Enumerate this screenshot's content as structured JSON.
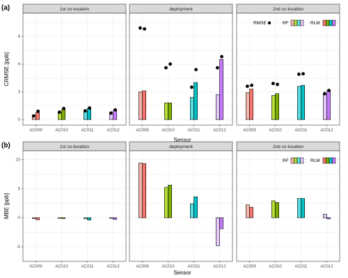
{
  "colors": {
    "AC009": "#f8766d",
    "AC010": "#7cae00",
    "AC011": "#00bfc4",
    "AC012": "#c77cff",
    "RF_AC009": "#f4b6af",
    "RF_AC010": "#b6df3a",
    "RF_AC011": "#58dde0",
    "RF_AC012": "#e4c9fb",
    "strip": "#d9d9d9",
    "grid": "#ebebeb",
    "point": "#000000"
  },
  "chart_data": [
    {
      "id": "a",
      "panel_label": "(a)",
      "type": "bar",
      "ylabel": "CRMSE [ppb]",
      "xlabel": "Sensor",
      "ylim": [
        -0.6,
        11.5
      ],
      "yticks": [
        0,
        3,
        6,
        9
      ],
      "categories": [
        "AC009",
        "AC010",
        "AC011",
        "AC012"
      ],
      "legend": {
        "rmse_label": "RMSE",
        "rf_label": "RF",
        "rlm_label": "RLM"
      },
      "facets": [
        {
          "title": "1st co-location",
          "series": [
            {
              "name": "RF",
              "values": [
                0.4,
                0.7,
                0.9,
                0.6
              ]
            },
            {
              "name": "RLM",
              "values": [
                0.8,
                1.1,
                1.2,
                1.0
              ]
            }
          ],
          "rmse": {
            "RF": [
              0.4,
              0.8,
              0.95,
              0.7
            ],
            "RLM": [
              0.9,
              1.2,
              1.25,
              1.05
            ]
          }
        },
        {
          "title": "deployment",
          "series": [
            {
              "name": "RF",
              "values": [
                3.0,
                1.8,
                2.4,
                2.7
              ]
            },
            {
              "name": "RLM",
              "values": [
                3.1,
                1.8,
                4.0,
                6.5
              ]
            }
          ],
          "rmse": {
            "RF": [
              9.9,
              5.6,
              3.5,
              5.6
            ],
            "RLM": [
              9.8,
              6.0,
              5.4,
              6.8
            ]
          }
        },
        {
          "title": "2nd co-location",
          "series": [
            {
              "name": "RF",
              "values": [
                2.9,
                2.6,
                3.6,
                2.7
              ]
            },
            {
              "name": "RLM",
              "values": [
                3.3,
                2.8,
                3.7,
                3.1
              ]
            }
          ],
          "rmse": {
            "RF": [
              3.6,
              3.9,
              4.9,
              2.8
            ],
            "RLM": [
              3.7,
              3.8,
              4.95,
              3.15
            ]
          }
        }
      ]
    },
    {
      "id": "b",
      "panel_label": "(b)",
      "type": "bar",
      "ylabel": "MBE [ppb]",
      "xlabel": "Sensor",
      "ylim": [
        -7.5,
        11.5
      ],
      "yticks": [
        -5,
        0,
        5,
        10
      ],
      "categories": [
        "AC009",
        "AC010",
        "AC011",
        "AC012"
      ],
      "legend": {
        "rf_label": "RF",
        "rlm_label": "RLM"
      },
      "facets": [
        {
          "title": "1st co-location",
          "series": [
            {
              "name": "RF",
              "values": [
                -0.15,
                -0.1,
                -0.15,
                -0.1
              ]
            },
            {
              "name": "RLM",
              "values": [
                -0.35,
                -0.15,
                -0.4,
                -0.3
              ]
            }
          ]
        },
        {
          "title": "deployment",
          "series": [
            {
              "name": "RF",
              "values": [
                9.4,
                5.2,
                2.4,
                -4.8
              ]
            },
            {
              "name": "RLM",
              "values": [
                9.3,
                5.6,
                3.6,
                -1.9
              ]
            }
          ]
        },
        {
          "title": "2nd co-location",
          "series": [
            {
              "name": "RF",
              "values": [
                2.2,
                2.9,
                3.3,
                0.6
              ]
            },
            {
              "name": "RLM",
              "values": [
                1.8,
                2.6,
                3.3,
                -0.2
              ]
            }
          ]
        }
      ]
    }
  ]
}
